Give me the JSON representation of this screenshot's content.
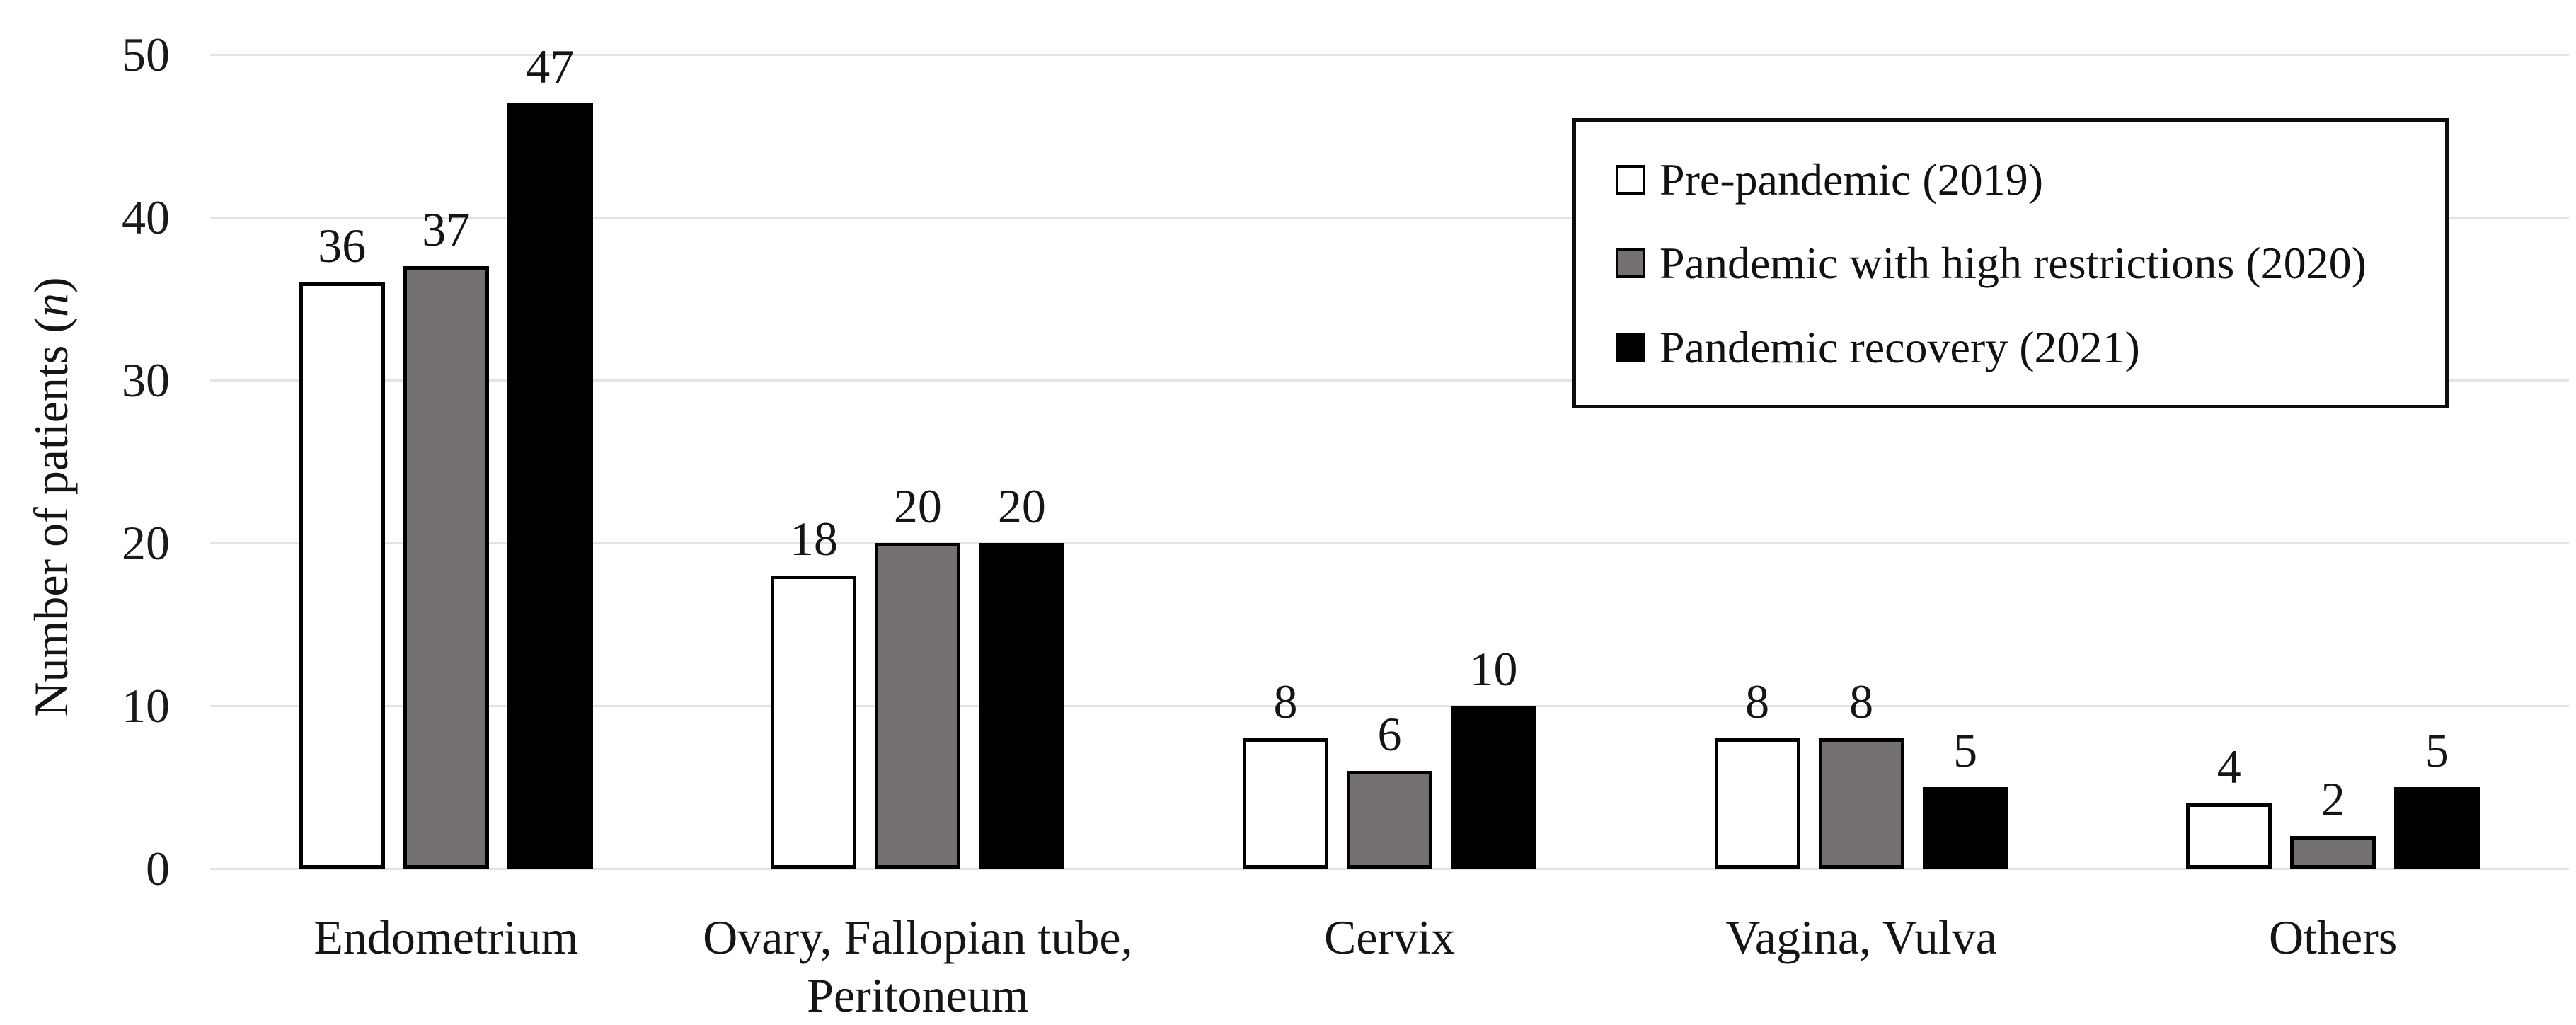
{
  "colors": {
    "background": "#ffffff",
    "gridline": "#e3e3e3",
    "bar_border": "#000000",
    "legend_border": "#0d0d0d",
    "text": "#1a1a1a"
  },
  "chart_data": {
    "type": "bar",
    "title": "",
    "ylabel_prefix": "Number of patients (",
    "ylabel_italic": "n",
    "ylabel_suffix": ")",
    "xlabel": "",
    "ylim": [
      0,
      50
    ],
    "yticks": [
      0,
      10,
      20,
      30,
      40,
      50
    ],
    "grid": true,
    "legend_position": "top-right",
    "categories": [
      "Endometrium",
      "Ovary, Fallopian tube, Peritoneum",
      "Cervix",
      "Vagina, Vulva",
      "Others"
    ],
    "category_lines": [
      [
        "Endometrium"
      ],
      [
        "Ovary, Fallopian tube,",
        "Peritoneum"
      ],
      [
        "Cervix"
      ],
      [
        "Vagina, Vulva"
      ],
      [
        "Others"
      ]
    ],
    "series": [
      {
        "name": "Pre-pandemic (2019)",
        "fill": "#ffffff",
        "values": [
          36,
          18,
          8,
          8,
          4
        ]
      },
      {
        "name": "Pandemic with high restrictions (2020)",
        "fill": "#767171",
        "values": [
          37,
          20,
          6,
          8,
          2
        ]
      },
      {
        "name": "Pandemic recovery (2021)",
        "fill": "#000000",
        "values": [
          47,
          20,
          10,
          5,
          5
        ]
      }
    ]
  }
}
